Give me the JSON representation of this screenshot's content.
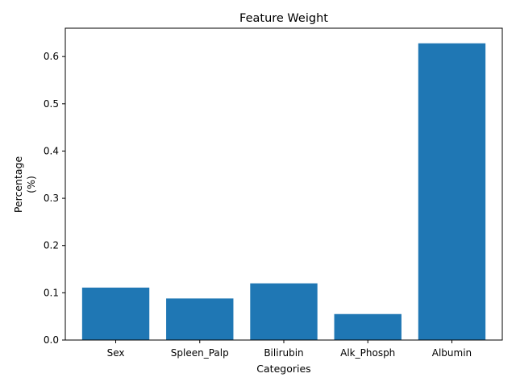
{
  "chart_data": {
    "type": "bar",
    "title": "Feature Weight",
    "xlabel": "Categories",
    "ylabel_lines": [
      "Percentage",
      "(%)"
    ],
    "categories": [
      "Sex",
      "Spleen_Palp",
      "Bilirubin",
      "Alk_Phosph",
      "Albumin"
    ],
    "values": [
      0.111,
      0.088,
      0.12,
      0.055,
      0.628
    ],
    "ylim": [
      0,
      0.66
    ],
    "yticks": [
      "0.0",
      "0.1",
      "0.2",
      "0.3",
      "0.4",
      "0.5",
      "0.6"
    ],
    "bar_color": "#1f77b4",
    "grid": false,
    "legend": "none"
  }
}
